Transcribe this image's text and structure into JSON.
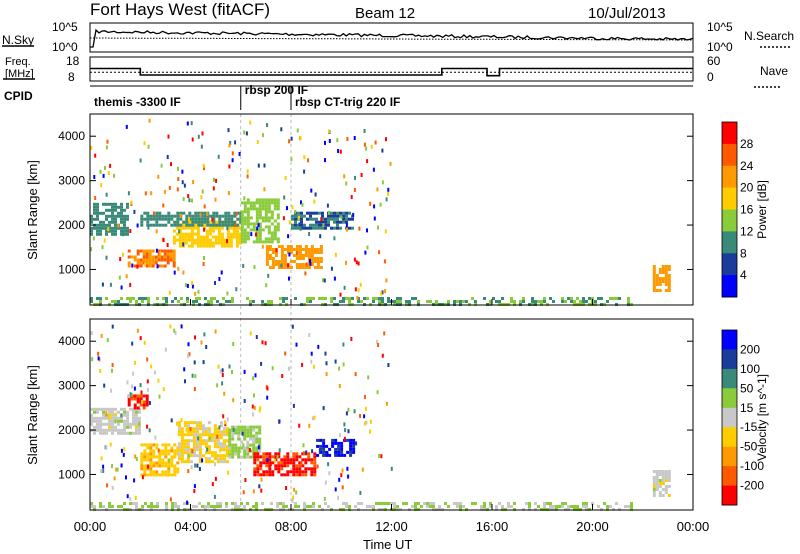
{
  "header": {
    "title": "Fort Hays West (fitACF)",
    "beam": "Beam 12",
    "date": "10/Jul/2013"
  },
  "nsky_panel": {
    "left_label": "N.Sky",
    "right_label": "N.Search",
    "left_ticks": [
      "10^5",
      "10^0"
    ],
    "right_ticks": [
      "10^5",
      "10^0"
    ]
  },
  "freq_panel": {
    "left_label_line1": "Freq.",
    "left_label_line2": "[MHz]",
    "right_label": "Nave",
    "left_ticks": [
      "18",
      "8"
    ],
    "right_ticks": [
      "60",
      "0"
    ],
    "freq_mhz": [
      [
        0,
        13.2
      ],
      [
        2.0,
        13.2
      ],
      [
        2.0,
        10.5
      ],
      [
        14.0,
        10.5
      ],
      [
        14.0,
        13.2
      ],
      [
        15.8,
        13.2
      ],
      [
        15.8,
        10.2
      ],
      [
        16.3,
        10.2
      ],
      [
        16.3,
        13.2
      ],
      [
        24,
        13.2
      ]
    ],
    "nave": 22
  },
  "cpid": {
    "label": "CPID",
    "entries": [
      {
        "start": 0.0,
        "text": "themis -3300 IF"
      },
      {
        "start": 6.0,
        "text": "rbsp 200 IF"
      },
      {
        "start": 8.0,
        "text": "rbsp CT-trig 220 IF"
      }
    ]
  },
  "time_axis": {
    "label": "Time UT",
    "ticks": [
      "00:00",
      "04:00",
      "08:00",
      "12:00",
      "16:00",
      "20:00",
      "00:00"
    ],
    "tick_hours": [
      0,
      4,
      8,
      12,
      16,
      20,
      24
    ]
  },
  "chart_data": [
    {
      "type": "heatmap",
      "title": "Power",
      "ylabel": "Slant Range [km]",
      "xlabel": "",
      "xlim": [
        0,
        24
      ],
      "ylim": [
        200,
        4500
      ],
      "yticks": [
        1000,
        2000,
        3000,
        4000
      ],
      "colorbar": {
        "label": "Power [dB]",
        "ticks": [
          "28",
          "24",
          "20",
          "16",
          "12",
          "8",
          "4"
        ],
        "colors": [
          "#ff0000",
          "#ff5a00",
          "#ff9900",
          "#ffcc00",
          "#8acb3a",
          "#3a8a7a",
          "#1a3c9a",
          "#0000ff"
        ],
        "range": [
          0,
          32
        ]
      },
      "regions": [
        {
          "t0": 0.0,
          "t1": 1.5,
          "r0": 1800,
          "r1": 2500,
          "value": 10
        },
        {
          "t0": 1.5,
          "t1": 3.3,
          "r0": 1050,
          "r1": 1450,
          "value": 24
        },
        {
          "t0": 3.3,
          "t1": 6.0,
          "r0": 1550,
          "r1": 2100,
          "value": 18
        },
        {
          "t0": 2.0,
          "t1": 6.0,
          "r0": 2000,
          "r1": 2300,
          "value": 10
        },
        {
          "t0": 6.0,
          "t1": 7.5,
          "r0": 1600,
          "r1": 2600,
          "value": 14
        },
        {
          "t0": 7.0,
          "t1": 9.2,
          "r0": 1050,
          "r1": 1550,
          "value": 22
        },
        {
          "t0": 8.0,
          "t1": 10.5,
          "r0": 1900,
          "r1": 2300,
          "value": 8
        },
        {
          "t0": 0.0,
          "t1": 21.5,
          "r0": 220,
          "r1": 380,
          "value": 12
        },
        {
          "t0": 22.4,
          "t1": 23.0,
          "r0": 550,
          "r1": 1100,
          "value": 22
        }
      ]
    },
    {
      "type": "heatmap",
      "title": "Velocity",
      "ylabel": "Slant Range [km]",
      "xlabel": "Time UT",
      "xlim": [
        0,
        24
      ],
      "ylim": [
        200,
        4500
      ],
      "yticks": [
        1000,
        2000,
        3000,
        4000
      ],
      "colorbar": {
        "label": "Velocity [m s^-1]",
        "ticks": [
          "200",
          "100",
          "50",
          "15",
          "-15",
          "-50",
          "-100",
          "-200"
        ],
        "colors": [
          "#0000ff",
          "#1a3c9a",
          "#3a8a7a",
          "#8acb3a",
          "#c8c8c8",
          "#ffcc00",
          "#ff9900",
          "#ff5a00",
          "#ff0000"
        ],
        "range": [
          -250,
          250
        ]
      },
      "regions": [
        {
          "t0": 0.0,
          "t1": 2.0,
          "r0": 1900,
          "r1": 2500,
          "value": 0
        },
        {
          "t0": 2.0,
          "t1": 3.5,
          "r0": 1000,
          "r1": 1700,
          "value": -60
        },
        {
          "t0": 3.5,
          "t1": 5.5,
          "r0": 1300,
          "r1": 2200,
          "value": -40
        },
        {
          "t0": 5.5,
          "t1": 6.8,
          "r0": 1400,
          "r1": 2100,
          "value": 40
        },
        {
          "t0": 6.5,
          "t1": 9.0,
          "r0": 1000,
          "r1": 1500,
          "value": -210
        },
        {
          "t0": 9.0,
          "t1": 10.5,
          "r0": 1400,
          "r1": 1800,
          "value": 200
        },
        {
          "t0": 1.5,
          "t1": 2.3,
          "r0": 2500,
          "r1": 2800,
          "value": -210
        },
        {
          "t0": 0.0,
          "t1": 21.5,
          "r0": 220,
          "r1": 380,
          "value": 30
        },
        {
          "t0": 22.4,
          "t1": 23.0,
          "r0": 550,
          "r1": 1100,
          "value": 0
        }
      ]
    }
  ]
}
